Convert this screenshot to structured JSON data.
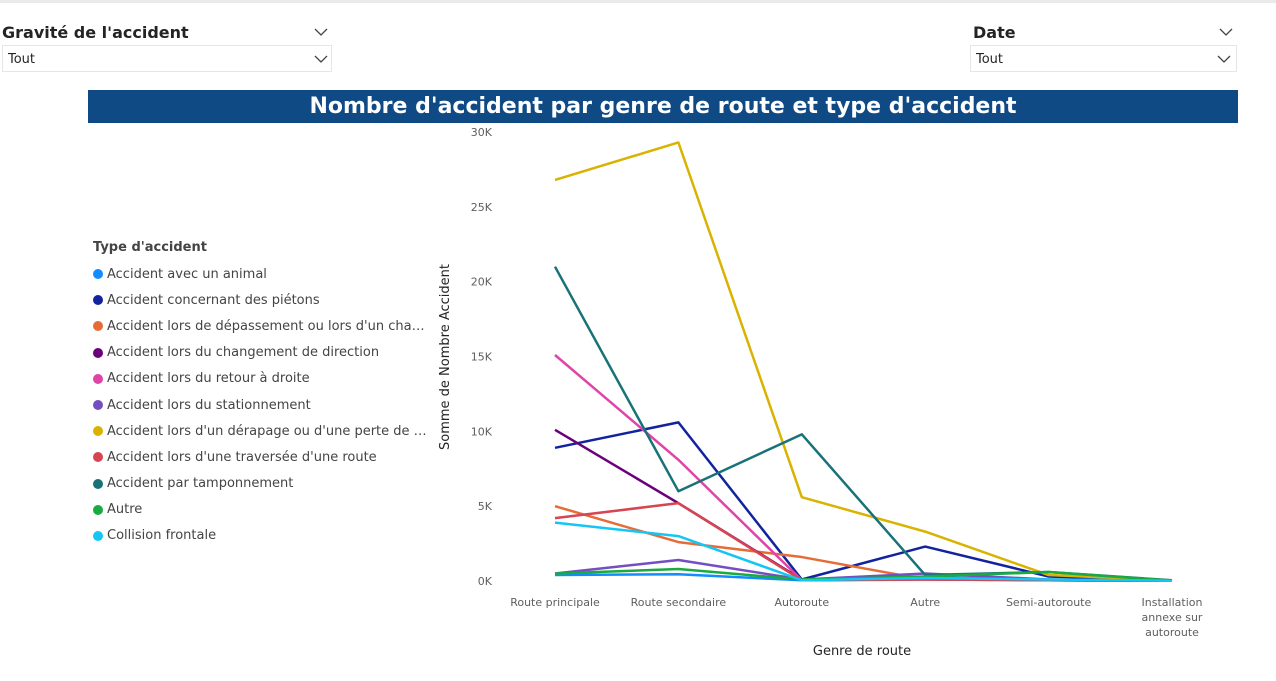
{
  "slicers": [
    {
      "title": "Gravité de l'accident",
      "value": "Tout"
    },
    {
      "title": "Date",
      "value": "Tout"
    }
  ],
  "colors": {
    "title_bar": "#0f4a84"
  },
  "chart_data": {
    "type": "line",
    "title": "Nombre d'accident par genre de route et type d'accident",
    "xlabel": "Genre de route",
    "ylabel": "Somme de Nombre Accident",
    "legend_title": "Type d'accident",
    "legend_position": "left",
    "categories": [
      "Route principale",
      "Route secondaire",
      "Autoroute",
      "Autre",
      "Semi-autoroute",
      "Installation annexe sur autoroute"
    ],
    "y_ticks": [
      "0K",
      "5K",
      "10K",
      "15K",
      "20K",
      "25K",
      "30K"
    ],
    "ylim": [
      0,
      30000
    ],
    "grid": false,
    "series": [
      {
        "name": "Accident avec un animal",
        "display": "Accident avec un animal",
        "color": "#118dff",
        "values": [
          400,
          450,
          50,
          250,
          100,
          20
        ]
      },
      {
        "name": "Accident concernant des piétons",
        "display": "Accident concernant des piétons",
        "color": "#12239e",
        "values": [
          8900,
          10600,
          100,
          2300,
          300,
          30
        ]
      },
      {
        "name": "Accident lors de dépassement ou lors d'un changement de voie",
        "display": "Accident lors de dépassement ou lors d'un change...",
        "color": "#e66c37",
        "values": [
          5000,
          2600,
          1600,
          100,
          50,
          20
        ]
      },
      {
        "name": "Accident lors du changement de direction",
        "display": "Accident lors du changement de direction",
        "color": "#6b007b",
        "values": [
          10100,
          5200,
          100,
          150,
          50,
          20
        ]
      },
      {
        "name": "Accident lors du retour à droite",
        "display": "Accident lors du retour à droite",
        "color": "#e044a7",
        "values": [
          15100,
          8100,
          50,
          100,
          50,
          20
        ]
      },
      {
        "name": "Accident lors du stationnement",
        "display": "Accident lors du stationnement",
        "color": "#744ec2",
        "values": [
          500,
          1400,
          100,
          500,
          100,
          20
        ]
      },
      {
        "name": "Accident lors d'un dérapage ou d'une perte de maîtrise",
        "display": "Accident lors d'un dérapage ou d'une perte de maî...",
        "color": "#d9b300",
        "values": [
          26800,
          29300,
          5600,
          3300,
          400,
          50
        ]
      },
      {
        "name": "Accident lors d'une traversée d'une route",
        "display": "Accident lors d'une traversée d'une route",
        "color": "#d64550",
        "values": [
          4200,
          5200,
          50,
          100,
          50,
          20
        ]
      },
      {
        "name": "Accident par tamponnement",
        "display": "Accident par tamponnement",
        "color": "#197278",
        "values": [
          21000,
          6000,
          9800,
          400,
          600,
          50
        ]
      },
      {
        "name": "Autre",
        "display": "Autre",
        "color": "#1aab40",
        "values": [
          500,
          800,
          100,
          300,
          600,
          20
        ]
      },
      {
        "name": "Collision frontale",
        "display": "Collision frontale",
        "color": "#15c6f4",
        "values": [
          3900,
          3000,
          50,
          200,
          100,
          20
        ]
      }
    ]
  }
}
